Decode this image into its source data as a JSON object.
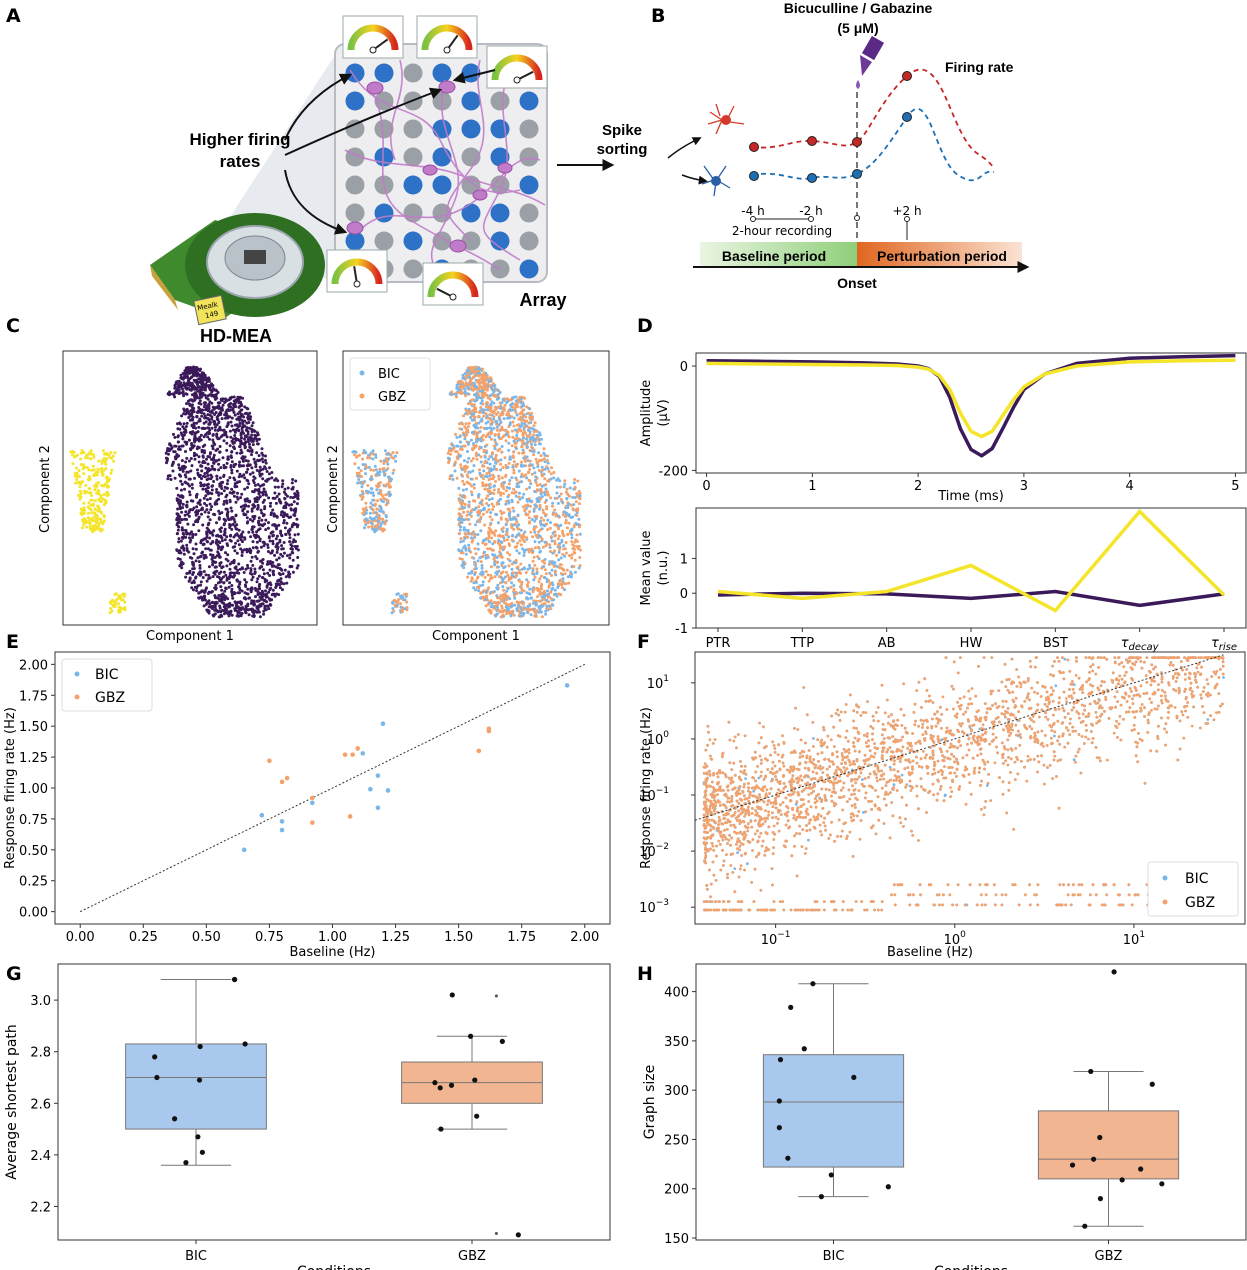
{
  "panel_letters": [
    "A",
    "B",
    "C",
    "D",
    "E",
    "F",
    "G",
    "H"
  ],
  "colors": {
    "bic": "#7ab6e8",
    "gbz": "#f4a26a",
    "cluster_purple": "#3b1a5a",
    "cluster_yellow": "#f4e52a",
    "bic_box": "#a9c8ee",
    "gbz_box": "#f2b591",
    "electrode_blue": "#2d72c6",
    "electrode_grey": "#9aa0a6",
    "neuron_pink": "#c07bc9",
    "red_trace": "#c62828",
    "blue_trace": "#1f6fb5"
  },
  "panel_a": {
    "higher_firing_line1": "Higher firing",
    "higher_firing_line2": "rates",
    "spike_line1": "Spike",
    "spike_line2": "sorting",
    "array_label": "Array",
    "device_label": "HD-MEA",
    "chip_tag_line1": "MeaIk",
    "chip_tag_line2": "149"
  },
  "panel_b": {
    "drug_line1": "Bicuculline / Gabazine",
    "drug_line2": "(5 μM)",
    "firing_rate_label": "Firing rate",
    "tick_minus4": "-4 h",
    "tick_minus2": "-2 h",
    "recording_label": "2-hour recording",
    "tick_plus2": "+2 h",
    "baseline_period": "Baseline period",
    "perturbation_period": "Perturbation period",
    "onset": "Onset"
  },
  "chart_data": [
    {
      "id": "C-left",
      "type": "scatter",
      "title": "",
      "xlabel": "Component 1",
      "ylabel": "Component 2",
      "series": [
        {
          "name": "cluster-large",
          "color": "#3b1a5a",
          "approx_points": 2400
        },
        {
          "name": "cluster-small",
          "color": "#f4e52a",
          "approx_points": 300
        }
      ]
    },
    {
      "id": "C-right",
      "type": "scatter",
      "xlabel": "Component 1",
      "ylabel": "Component 2",
      "legend": [
        "BIC",
        "GBZ"
      ],
      "legend_position": "top-left"
    },
    {
      "id": "D-top",
      "type": "line",
      "xlabel": "Time (ms)",
      "ylabel_line1": "Amplitude",
      "ylabel_line2": "(μV)",
      "xlim": [
        -0.1,
        5.1
      ],
      "ylim": [
        -205,
        25
      ],
      "xticks": [
        0,
        1,
        2,
        3,
        4,
        5
      ],
      "yticks": [
        0,
        -200
      ],
      "series": [
        {
          "name": "purple",
          "x": [
            0,
            0.5,
            1,
            1.5,
            1.8,
            2,
            2.1,
            2.2,
            2.3,
            2.4,
            2.5,
            2.6,
            2.7,
            2.8,
            2.9,
            3,
            3.2,
            3.5,
            4,
            4.5,
            5
          ],
          "values": [
            10,
            9,
            8,
            6,
            4,
            0,
            -5,
            -20,
            -60,
            -120,
            -160,
            -172,
            -158,
            -120,
            -80,
            -45,
            -15,
            5,
            15,
            18,
            20
          ]
        },
        {
          "name": "yellow",
          "x": [
            0,
            0.5,
            1,
            1.5,
            1.8,
            2,
            2.1,
            2.2,
            2.3,
            2.4,
            2.5,
            2.6,
            2.7,
            2.8,
            2.9,
            3,
            3.2,
            3.5,
            4,
            4.5,
            5
          ],
          "values": [
            5,
            4,
            3,
            2,
            1,
            -2,
            -6,
            -18,
            -45,
            -90,
            -125,
            -135,
            -125,
            -95,
            -65,
            -40,
            -15,
            0,
            8,
            10,
            11
          ]
        }
      ]
    },
    {
      "id": "D-bottom",
      "type": "line",
      "ylabel_line1": "Mean value",
      "ylabel_line2": "(n.u.)",
      "categories": [
        "PTR",
        "TTP",
        "AB",
        "HW",
        "BST",
        "τ",
        "τ"
      ],
      "category_subscripts": [
        "",
        "",
        "",
        "",
        "",
        "decay",
        "rise"
      ],
      "ylim": [
        -1,
        2.45
      ],
      "yticks": [
        -1,
        0,
        1
      ],
      "series": [
        {
          "name": "purple",
          "values": [
            -0.05,
            0.0,
            -0.02,
            -0.15,
            0.05,
            -0.35,
            -0.02
          ]
        },
        {
          "name": "yellow",
          "values": [
            0.05,
            -0.15,
            0.05,
            0.8,
            -0.5,
            2.35,
            -0.05
          ]
        }
      ]
    },
    {
      "id": "E",
      "type": "scatter",
      "xlabel": "Baseline (Hz)",
      "ylabel": "Response firing rate (Hz)",
      "xlim": [
        -0.1,
        2.1
      ],
      "ylim": [
        -0.1,
        2.1
      ],
      "xticks": [
        "0.00",
        "0.25",
        "0.50",
        "0.75",
        "1.00",
        "1.25",
        "1.50",
        "1.75",
        "2.00"
      ],
      "yticks": [
        "0.00",
        "0.25",
        "0.50",
        "0.75",
        "1.00",
        "1.25",
        "1.50",
        "1.75",
        "2.00"
      ],
      "identity_line": [
        [
          0,
          0
        ],
        [
          2,
          2
        ]
      ],
      "legend": [
        "BIC",
        "GBZ"
      ],
      "legend_position": "top-left",
      "series": [
        {
          "name": "BIC",
          "x": [
            0.65,
            0.72,
            0.8,
            0.8,
            0.92,
            1.12,
            1.15,
            1.18,
            1.18,
            1.2,
            1.22,
            1.93
          ],
          "y": [
            0.5,
            0.78,
            0.73,
            0.66,
            0.88,
            1.28,
            0.99,
            1.1,
            0.84,
            1.52,
            0.98,
            1.83
          ]
        },
        {
          "name": "GBZ",
          "x": [
            0.75,
            0.8,
            0.82,
            0.92,
            0.92,
            1.05,
            1.07,
            1.08,
            1.1,
            1.58,
            1.62,
            1.62
          ],
          "y": [
            1.22,
            1.05,
            1.08,
            0.92,
            0.72,
            1.27,
            0.77,
            1.27,
            1.32,
            1.3,
            1.48,
            1.46
          ]
        }
      ]
    },
    {
      "id": "F",
      "type": "scatter",
      "scale": "log-log",
      "xlabel": "Baseline (Hz)",
      "ylabel": "Response firing rate (Hz)",
      "xlim_log10": [
        -1.45,
        1.62
      ],
      "ylim_log10": [
        -3.3,
        1.55
      ],
      "xticks": [
        {
          "base": "10",
          "exp": "−1",
          "log10": -1
        },
        {
          "base": "10",
          "exp": "0",
          "log10": 0
        },
        {
          "base": "10",
          "exp": "1",
          "log10": 1
        }
      ],
      "yticks": [
        {
          "base": "10",
          "exp": "−3",
          "log10": -3
        },
        {
          "base": "10",
          "exp": "−2",
          "log10": -2
        },
        {
          "base": "10",
          "exp": "−1",
          "log10": -1
        },
        {
          "base": "10",
          "exp": "0",
          "log10": 0
        },
        {
          "base": "10",
          "exp": "1",
          "log10": 1
        }
      ],
      "identity_line_log10": [
        [
          -1.45,
          -1.45
        ],
        [
          1.5,
          1.5
        ]
      ],
      "legend": [
        "BIC",
        "GBZ"
      ],
      "legend_position": "bottom-right",
      "approx_points_per_series": 2500
    },
    {
      "id": "G",
      "type": "box",
      "xlabel": "Conditions",
      "ylabel": "Average shortest path",
      "categories": [
        "BIC",
        "GBZ"
      ],
      "ylim": [
        2.07,
        3.14
      ],
      "yticks": [
        "2.2",
        "2.4",
        "2.6",
        "2.8",
        "3.0"
      ],
      "ytick_values": [
        2.2,
        2.4,
        2.6,
        2.8,
        3.0
      ],
      "boxes": [
        {
          "name": "BIC",
          "whisker_low": 2.36,
          "q1": 2.5,
          "median": 2.7,
          "q3": 2.83,
          "whisker_high": 3.08
        },
        {
          "name": "GBZ",
          "whisker_low": 2.5,
          "q1": 2.6,
          "median": 2.68,
          "q3": 2.76,
          "whisker_high": 2.86
        }
      ],
      "points": [
        {
          "cat": 0,
          "values": [
            3.08,
            3.08,
            2.83,
            2.82,
            2.78,
            2.7,
            2.69,
            2.54,
            2.47,
            2.41,
            2.37
          ]
        },
        {
          "cat": 1,
          "values": [
            3.02,
            2.86,
            2.84,
            2.69,
            2.68,
            2.67,
            2.66,
            2.55,
            2.5,
            2.09
          ]
        }
      ],
      "outliers": [
        {
          "cat": 1,
          "values": [
            3.02,
            2.1
          ]
        }
      ]
    },
    {
      "id": "H",
      "type": "box",
      "xlabel": "Conditions",
      "ylabel": "Graph size",
      "categories": [
        "BIC",
        "GBZ"
      ],
      "ylim": [
        148,
        428
      ],
      "yticks": [
        "150",
        "200",
        "250",
        "300",
        "350",
        "400"
      ],
      "ytick_values": [
        150,
        200,
        250,
        300,
        350,
        400
      ],
      "boxes": [
        {
          "name": "BIC",
          "whisker_low": 192,
          "q1": 222,
          "median": 288,
          "q3": 336,
          "whisker_high": 408
        },
        {
          "name": "GBZ",
          "whisker_low": 162,
          "q1": 210,
          "median": 230,
          "q3": 279,
          "whisker_high": 319
        }
      ],
      "points": [
        {
          "cat": 0,
          "values": [
            408,
            384,
            342,
            331,
            313,
            289,
            262,
            231,
            214,
            202,
            192
          ]
        },
        {
          "cat": 1,
          "values": [
            420,
            319,
            306,
            252,
            230,
            224,
            220,
            209,
            205,
            190,
            162
          ]
        }
      ]
    }
  ]
}
